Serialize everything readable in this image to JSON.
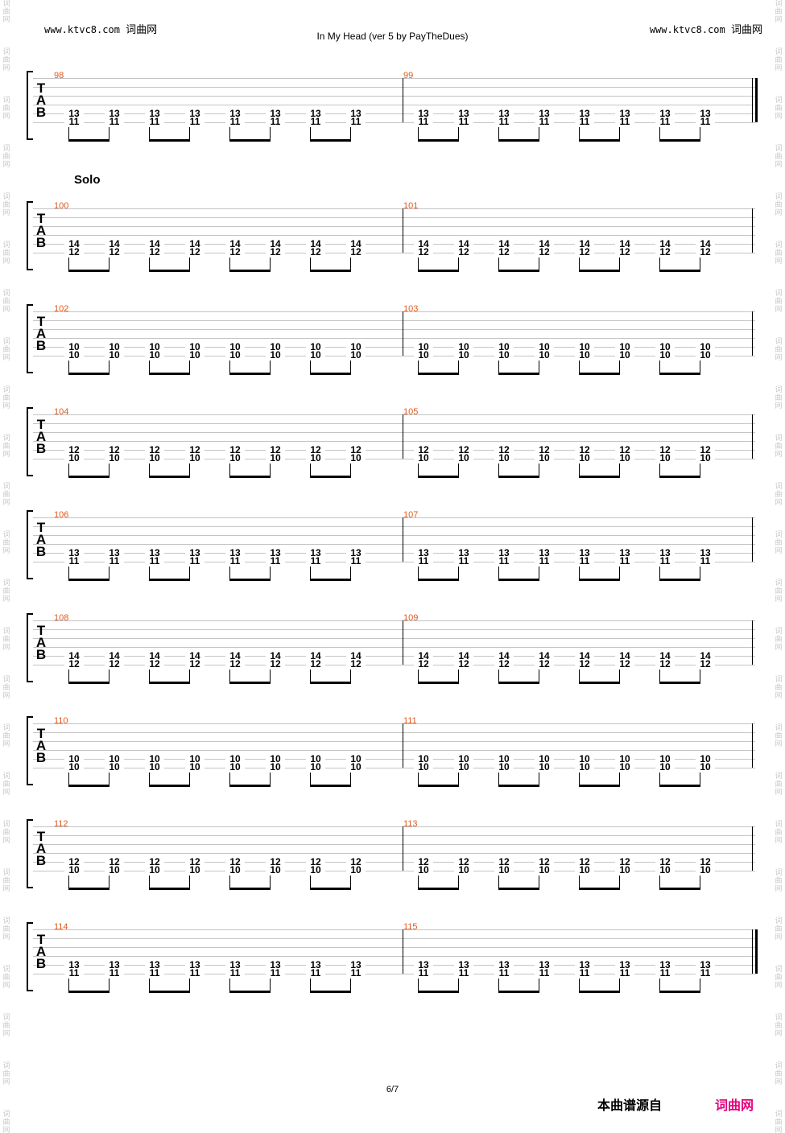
{
  "header": {
    "site_left_url": "www.ktvc8.com",
    "site_left_name": "词曲网",
    "site_right_url": "www.ktvc8.com",
    "site_right_name": "词曲网",
    "title": "In My Head (ver 5 by PayTheDues)"
  },
  "watermark": {
    "char1": "词",
    "char2": "曲",
    "char3": "网"
  },
  "tab_letters": [
    "T",
    "A",
    "B"
  ],
  "section": {
    "label": "Solo"
  },
  "systems": [
    {
      "measures": [
        "98",
        "99"
      ],
      "top": "13",
      "bottom": "11",
      "end_double": true
    },
    {
      "measures": [
        "100",
        "101"
      ],
      "top": "14",
      "bottom": "12",
      "end_double": false
    },
    {
      "measures": [
        "102",
        "103"
      ],
      "top": "10",
      "bottom": "10",
      "end_double": false
    },
    {
      "measures": [
        "104",
        "105"
      ],
      "top": "12",
      "bottom": "10",
      "end_double": false
    },
    {
      "measures": [
        "106",
        "107"
      ],
      "top": "13",
      "bottom": "11",
      "end_double": false
    },
    {
      "measures": [
        "108",
        "109"
      ],
      "top": "14",
      "bottom": "12",
      "end_double": false
    },
    {
      "measures": [
        "110",
        "111"
      ],
      "top": "10",
      "bottom": "10",
      "end_double": false
    },
    {
      "measures": [
        "112",
        "113"
      ],
      "top": "12",
      "bottom": "10",
      "end_double": false
    },
    {
      "measures": [
        "114",
        "115"
      ],
      "top": "13",
      "bottom": "11",
      "end_double": true
    }
  ],
  "footer": {
    "page": "6/7",
    "source_label": "本曲谱源自",
    "brand": "词曲网"
  }
}
